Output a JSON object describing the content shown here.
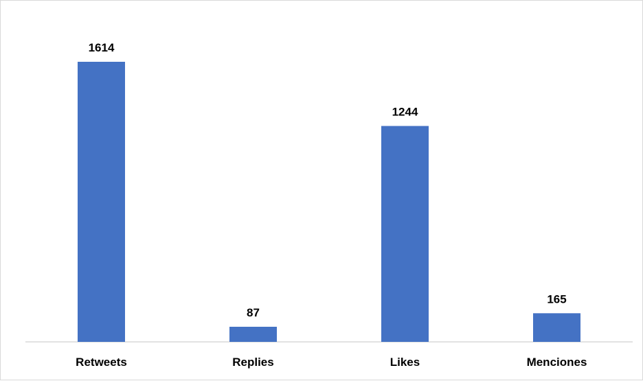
{
  "chart_data": {
    "type": "bar",
    "categories": [
      "Retweets",
      "Replies",
      "Likes",
      "Menciones"
    ],
    "values": [
      1614,
      87,
      1244,
      165
    ],
    "title": "",
    "xlabel": "",
    "ylabel": "",
    "ylim": [
      0,
      1614
    ],
    "grid": false,
    "legend": "none",
    "data_labels": true,
    "bar_color": "#4472C4",
    "axis_color": "#d9d9d9"
  }
}
